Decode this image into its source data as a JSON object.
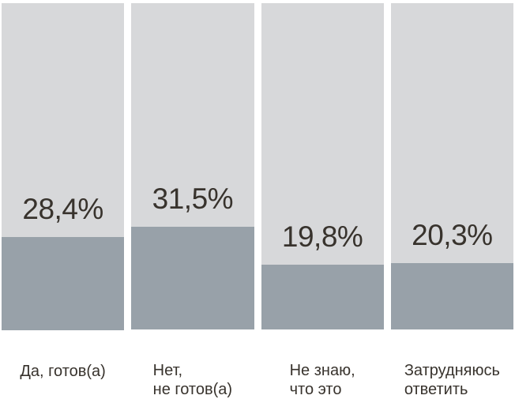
{
  "chart_data": {
    "type": "bar",
    "title": "",
    "xlabel": "",
    "ylabel": "",
    "ylim": [
      0,
      100
    ],
    "grid": false,
    "legend": false,
    "orientation": "vertical",
    "categories": [
      "Да, готов(а)",
      "Нет,\nне готов(а)",
      "Не знаю,\nчто это",
      "Затрудняюсь\nответить"
    ],
    "values": [
      28.4,
      31.5,
      19.8,
      20.3
    ],
    "value_labels": [
      "28,4%",
      "31,5%",
      "19,8%",
      "20,3%"
    ],
    "columns": [
      {
        "category": "Да, готов(а)",
        "value": 28.4,
        "value_label": "28,4%"
      },
      {
        "category": "Нет,\nне готов(а)",
        "value": 31.5,
        "value_label": "31,5%"
      },
      {
        "category": "Не знаю,\nчто это",
        "value": 19.8,
        "value_label": "19,8%"
      },
      {
        "category": "Затрудняюсь\nответить",
        "value": 20.3,
        "value_label": "20,3%"
      }
    ],
    "colors": {
      "track": "#d7d8da",
      "fill": "#98a1a9",
      "text": "#38332d",
      "background": "#ffffff"
    }
  }
}
